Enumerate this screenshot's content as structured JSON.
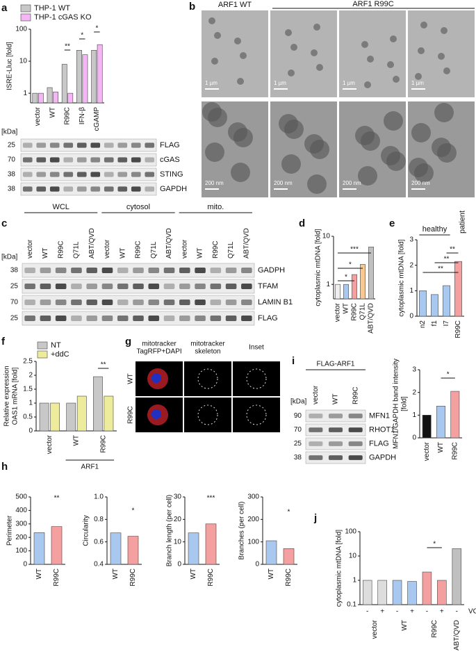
{
  "panel_labels": [
    "a",
    "b",
    "c",
    "d",
    "e",
    "f",
    "g",
    "h",
    "i",
    "j"
  ],
  "chart_data": [
    {
      "type": "bar",
      "y_label": "ISRE-Lluc [fold]",
      "log_scale": true,
      "ylim": [
        0.5,
        100
      ],
      "yticks": [
        1,
        10,
        100
      ],
      "categories": [
        "vector",
        "WT",
        "R99C",
        "IFN-β",
        "cGAMP"
      ],
      "series": [
        {
          "name": "THP-1 WT",
          "color": "#c8c8c8",
          "values": [
            1,
            1.5,
            8,
            22,
            22
          ]
        },
        {
          "name": "THP-1 cGAS KO",
          "color": "#f4b6f4",
          "values": [
            1,
            1.1,
            1,
            16,
            33
          ]
        }
      ],
      "annotations": [
        "**",
        "*",
        "*"
      ]
    },
    {
      "type": "bar",
      "y_label": "cytoplasmic mtDNA [fold]",
      "log_scale": true,
      "ylim": [
        0.5,
        10
      ],
      "yticks": [
        1,
        10
      ],
      "categories": [
        "vector",
        "WT",
        "R99C",
        "Q71L",
        "ABT/QVD"
      ],
      "values": [
        1,
        1,
        1.6,
        2.6,
        6
      ],
      "colors": [
        "#eeeeee",
        "#a8c8f0",
        "#f4a0a0",
        "#f8c890",
        "#c0c0c0"
      ],
      "annotations": [
        "*",
        "*",
        "***"
      ]
    },
    {
      "type": "bar",
      "y_label": "cytoplasmic mtDNA [fold]",
      "ylim": [
        0,
        3
      ],
      "yticks": [
        0,
        1,
        2,
        3
      ],
      "categories": [
        "n2",
        "f1",
        "I7",
        "R99C"
      ],
      "values": [
        1,
        0.85,
        1.2,
        2.15
      ],
      "colors": [
        "#a8c8f0",
        "#a8c8f0",
        "#a8c8f0",
        "#f4a0a0"
      ],
      "group_labels": [
        "healthy",
        "patient"
      ],
      "annotations": [
        "**",
        "**",
        "**"
      ]
    },
    {
      "type": "bar",
      "y_label": [
        "Relative expression",
        "OAS1 mRNA [fold]"
      ],
      "ylim": [
        0,
        2.5
      ],
      "yticks": [
        0,
        0.5,
        1,
        1.5,
        2,
        2.5
      ],
      "categories": [
        "vector",
        "WT",
        "R99C"
      ],
      "series": [
        {
          "name": "NT",
          "color": "#c8c8c8",
          "values": [
            1,
            1,
            1.95
          ]
        },
        {
          "name": "+ddC",
          "color": "#ecec9c",
          "values": [
            1,
            1.25,
            1.25
          ]
        }
      ],
      "group_labels": [
        "ARF1"
      ],
      "annotations": [
        "**"
      ]
    },
    {
      "type": "bar",
      "y_label": [
        "MFN1/GAPDH band intensity",
        "[fold]"
      ],
      "ylim": [
        0,
        3
      ],
      "yticks": [
        0,
        1,
        2,
        3
      ],
      "categories": [
        "vector",
        "WT",
        "R99C"
      ],
      "values": [
        1,
        1.4,
        2.05
      ],
      "colors": [
        "#111111",
        "#a8c8f0",
        "#f4a0a0"
      ],
      "annotations": [
        "*"
      ]
    },
    {
      "type": "bar",
      "y_label": "Perimeter",
      "ylim": [
        0,
        500
      ],
      "yticks": [
        0,
        100,
        200,
        300,
        400,
        500
      ],
      "categories": [
        "WT",
        "R99C"
      ],
      "values": [
        235,
        280
      ],
      "colors": [
        "#a8c8f0",
        "#f4a0a0"
      ],
      "annotations": [
        "**"
      ]
    },
    {
      "type": "bar",
      "y_label": "Circularity",
      "ylim": [
        0.4,
        1
      ],
      "yticks": [
        0.4,
        0.6,
        0.8,
        {
          "value": 1,
          "label": "1.0"
        }
      ],
      "categories": [
        "WT",
        "R99C"
      ],
      "values": [
        0.68,
        0.65
      ],
      "colors": [
        "#a8c8f0",
        "#f4a0a0"
      ],
      "annotations": [
        "*"
      ]
    },
    {
      "type": "bar",
      "y_label": "Branch length (per cell)",
      "ylim": [
        0,
        30
      ],
      "yticks": [
        0,
        10,
        20,
        30
      ],
      "categories": [
        "WT",
        "R99C"
      ],
      "values": [
        14,
        18
      ],
      "colors": [
        "#a8c8f0",
        "#f4a0a0"
      ],
      "annotations": [
        "***"
      ]
    },
    {
      "type": "bar",
      "y_label": "Branches (per cell)",
      "ylim": [
        0,
        300
      ],
      "yticks": [
        0,
        100,
        200,
        300
      ],
      "categories": [
        "WT",
        "R99C"
      ],
      "values": [
        105,
        70
      ],
      "colors": [
        "#a8c8f0",
        "#f4a0a0"
      ],
      "annotations": [
        "*"
      ]
    },
    {
      "type": "bar",
      "y_label": "cytoplasmic mtDNA [fold]",
      "log_scale": true,
      "ylim": [
        0.1,
        100
      ],
      "yticks": [
        0.1,
        1,
        10,
        100
      ],
      "categories": [
        "-",
        "+",
        "-",
        "+",
        "-",
        "+",
        "-"
      ],
      "values": [
        1,
        1,
        1,
        0.9,
        2.2,
        1,
        20
      ],
      "colors": [
        "#dddddd",
        "#dddddd",
        "#a8c8f0",
        "#a8c8f0",
        "#f4a0a0",
        "#f4a0a0",
        "#c0c0c0"
      ],
      "group_labels": [
        "vector",
        "WT",
        "R99C",
        "ABT/QVD"
      ],
      "row_label": "VCP",
      "annotations": [
        "*"
      ]
    }
  ],
  "blots": [
    {
      "ladder_title": "[kDa]",
      "rows": [
        {
          "kda": 25,
          "name": "FLAG"
        },
        {
          "kda": 70,
          "name": "cGAS"
        },
        {
          "kda": 38,
          "name": "STING"
        },
        {
          "kda": 38,
          "name": "GAPDH"
        }
      ]
    },
    {
      "ladder_title": "[kDa]",
      "groups": [
        "WCL",
        "cytosol",
        "mito."
      ],
      "lanes": [
        "vector",
        "WT",
        "R99C",
        "Q71L",
        "ABT/QVD",
        "vector",
        "WT",
        "R99C",
        "Q71L",
        "ABT/QVD",
        "vector",
        "WT",
        "R99C",
        "Q71L",
        "ABT/QVD"
      ],
      "rows": [
        {
          "kda": 38,
          "name": "GADPH"
        },
        {
          "kda": 25,
          "name": "TFAM"
        },
        {
          "kda": 70,
          "name": "LAMIN B1"
        },
        {
          "kda": 25,
          "name": "FLAG"
        }
      ]
    },
    {
      "ladder_title": "[kDa]",
      "title": "FLAG-ARF1",
      "lanes": [
        "vector",
        "WT",
        "R99C"
      ],
      "rows": [
        {
          "kda": 90,
          "name": "MFN1"
        },
        {
          "kda": 70,
          "name": "RHOT1"
        },
        {
          "kda": 25,
          "name": "FLAG"
        },
        {
          "kda": 38,
          "name": "GAPDH"
        }
      ]
    }
  ],
  "em": {
    "labels": [
      "ARF1 WT",
      "ARF1 R99C"
    ],
    "scale_bars": [
      "1 µm",
      "1 µm",
      "1 µm",
      "1 µm",
      "200 nm",
      "200 nm",
      "200 nm",
      "200 nm"
    ]
  },
  "micro": {
    "titles": [
      "mitotracker",
      "TagRFP+DAPI",
      "mitotracker",
      "skeleton",
      "Inset"
    ],
    "rows": [
      "WT",
      "R99C"
    ]
  }
}
